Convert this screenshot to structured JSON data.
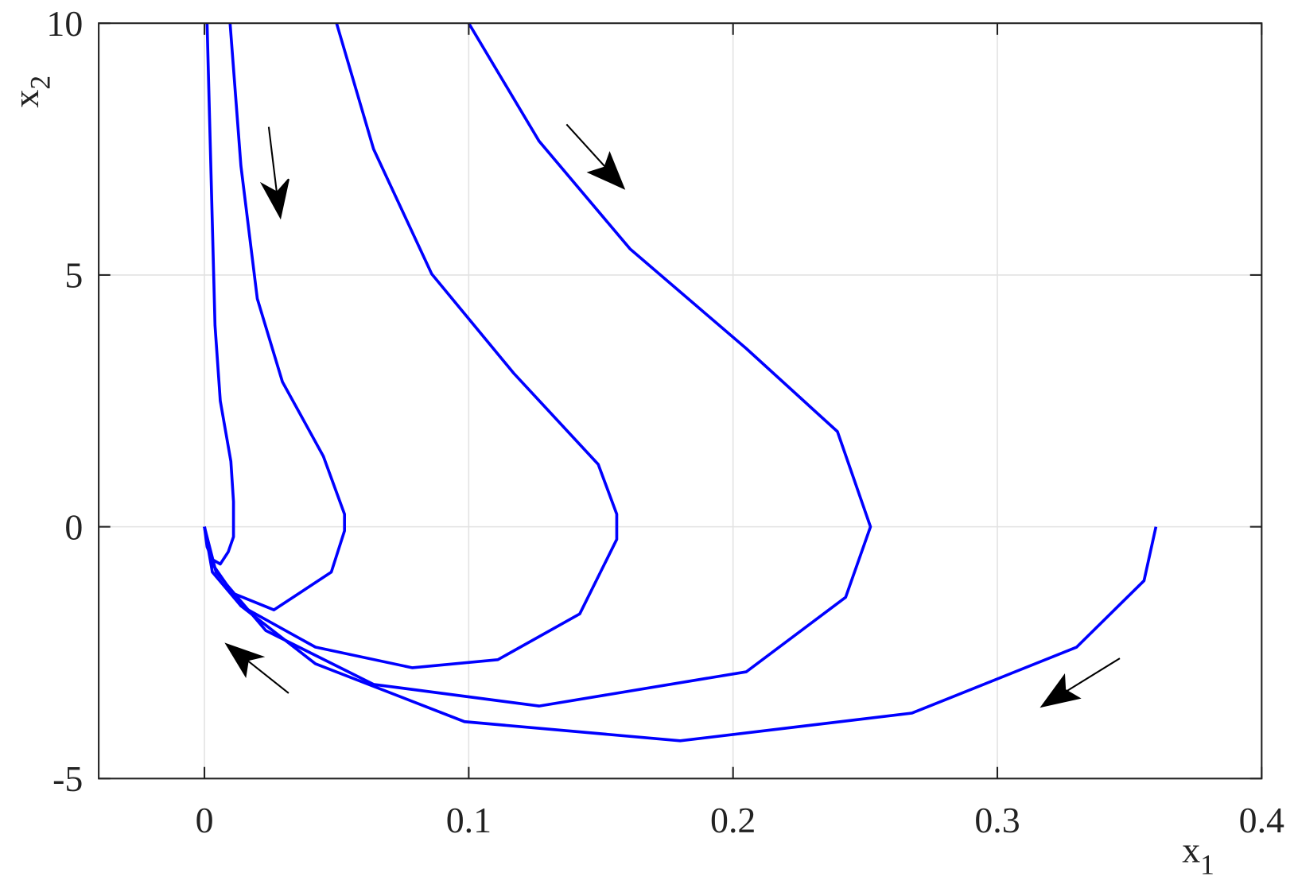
{
  "chart_data": {
    "type": "line",
    "xlabel": "x",
    "xlabel_subscript": "1",
    "ylabel": "x",
    "ylabel_subscript": "2",
    "xlim": [
      -0.04,
      0.4
    ],
    "ylim": [
      -5,
      10
    ],
    "xticks": [
      0,
      0.1,
      0.2,
      0.3,
      0.4
    ],
    "yticks": [
      -5,
      0,
      5,
      10
    ],
    "grid": true,
    "series": [
      {
        "color": "#0000ff",
        "x": [
          0.001,
          0.002,
          0.003,
          0.004,
          0.006,
          0.01,
          0.011,
          0.011,
          0.011,
          0.009,
          0.006,
          0.003,
          0.001,
          0
        ],
        "values": [
          10,
          8,
          6,
          4,
          2.5,
          1.3,
          0.5,
          0,
          -0.2,
          -0.5,
          -0.74,
          -0.65,
          -0.4,
          0
        ]
      },
      {
        "color": "#0000ff",
        "x": [
          0.0097,
          0.0138,
          0.02,
          0.0295,
          0.045,
          0.053,
          0.053,
          0.048,
          0.0263,
          0.0107,
          0.003,
          0
        ],
        "values": [
          10,
          7.17,
          4.53,
          2.88,
          1.4,
          0.25,
          -0.08,
          -0.9,
          -1.65,
          -1.32,
          -0.74,
          0
        ]
      },
      {
        "color": "#0000ff",
        "x": [
          0.05,
          0.064,
          0.086,
          0.117,
          0.149,
          0.156,
          0.156,
          0.142,
          0.111,
          0.0787,
          0.042,
          0.0138,
          0.003,
          0
        ],
        "values": [
          10,
          7.5,
          5.02,
          3.05,
          1.24,
          0.25,
          -0.25,
          -1.73,
          -2.64,
          -2.8,
          -2.39,
          -1.57,
          -0.9,
          0
        ]
      },
      {
        "color": "#0000ff",
        "x": [
          0.1,
          0.1266,
          0.161,
          0.205,
          0.2395,
          0.252,
          0.2426,
          0.205,
          0.1266,
          0.064,
          0.0232,
          0.0044,
          0
        ],
        "values": [
          10,
          7.66,
          5.52,
          3.54,
          1.89,
          0,
          -1.4,
          -2.88,
          -3.56,
          -3.13,
          -2.06,
          -0.9,
          0
        ]
      },
      {
        "color": "#0000ff",
        "x": [
          0.36,
          0.3555,
          0.33,
          0.2677,
          0.18,
          0.0984,
          0.042,
          0.0138,
          0.003,
          0
        ],
        "values": [
          0,
          -1.07,
          -2.39,
          -3.7,
          -4.25,
          -3.87,
          -2.72,
          -1.57,
          -0.74,
          0
        ]
      }
    ]
  }
}
